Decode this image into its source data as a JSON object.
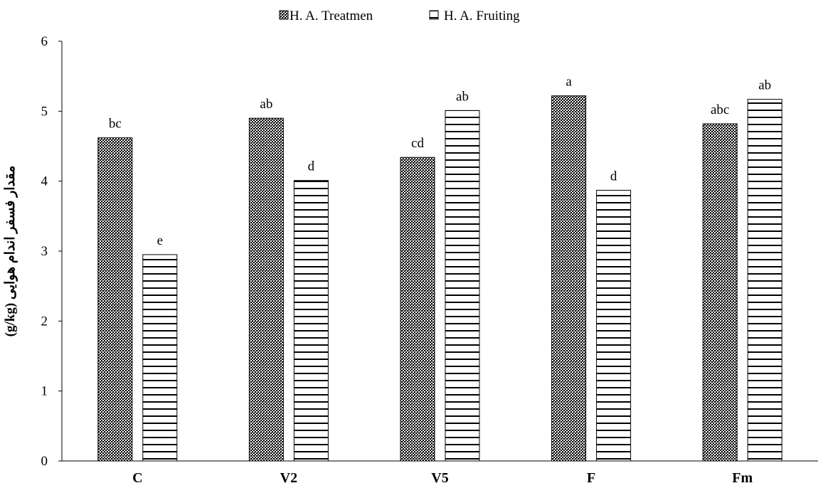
{
  "chart_data": {
    "type": "bar",
    "categories": [
      "C",
      "V2",
      "V5",
      "F",
      "Fm"
    ],
    "series": [
      {
        "name": "H. A. Treatmen",
        "pattern": "crosshatch",
        "values": [
          4.62,
          4.9,
          4.34,
          5.22,
          4.82
        ],
        "labels": [
          "bc",
          "ab",
          "cd",
          "a",
          "abc"
        ]
      },
      {
        "name": "H. A. Fruiting",
        "pattern": "horizontal-lines",
        "values": [
          2.95,
          4.01,
          5.01,
          3.87,
          5.17
        ],
        "labels": [
          "e",
          "d",
          "ab",
          "d",
          "ab"
        ]
      }
    ],
    "ylabel": "مقدار فسفر اندام هوایی (g/kg)",
    "ylim": [
      0,
      6
    ],
    "yticks": [
      "0",
      "1",
      "2",
      "3",
      "4",
      "5",
      "6"
    ],
    "legend_position": "top-center",
    "grid": false,
    "colors": {
      "bar_outline": "#000000",
      "pattern_dark": "#000000",
      "background": "#ffffff"
    }
  }
}
